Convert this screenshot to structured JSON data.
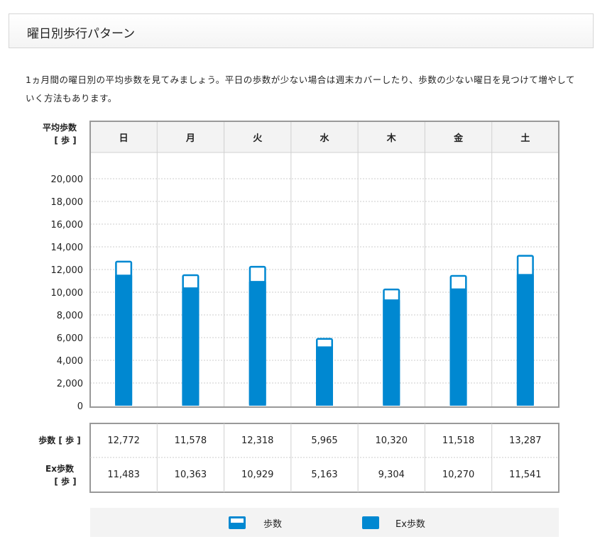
{
  "section": {
    "title": "曜日別歩行パターン"
  },
  "description": "1ヵ月間の曜日別の平均歩数を見てみましょう。平日の歩数が少ない場合は週末カバーしたり、歩数の少ない曜日を見つけて増やしていく方法もあります。",
  "colors": {
    "bar": "#0088d1",
    "frame": "#999999",
    "grid": "#cccccc",
    "header_bg": "#f3f3f3",
    "legend_bg": "#f3f3f3"
  },
  "chart_data": {
    "type": "bar",
    "categories": [
      "日",
      "月",
      "火",
      "水",
      "木",
      "金",
      "土"
    ],
    "series": [
      {
        "name": "歩数",
        "values": [
          12772,
          11578,
          12318,
          5965,
          10320,
          11518,
          13287
        ]
      },
      {
        "name": "Ex歩数",
        "values": [
          11483,
          10363,
          10929,
          5163,
          9304,
          10270,
          11541
        ]
      }
    ],
    "ylabel_line1": "平均歩数",
    "ylabel_line2": "[ 歩 ]",
    "ylim": [
      0,
      20000
    ],
    "yticks": [
      "0",
      "2,000",
      "4,000",
      "6,000",
      "8,000",
      "10,000",
      "12,000",
      "14,000",
      "16,000",
      "18,000",
      "20,000"
    ],
    "grid": true,
    "legend_position": "bottom"
  },
  "table": {
    "rows": [
      {
        "label_line1": "歩数 [ 歩 ]",
        "label_line2": "",
        "cells": [
          "12,772",
          "11,578",
          "12,318",
          "5,965",
          "10,320",
          "11,518",
          "13,287"
        ]
      },
      {
        "label_line1": "Ex歩数",
        "label_line2": "[ 歩 ]",
        "cells": [
          "11,483",
          "10,363",
          "10,929",
          "5,163",
          "9,304",
          "10,270",
          "11,541"
        ]
      }
    ]
  },
  "legend": {
    "items": [
      {
        "label": "歩数",
        "icon": "outlined-bar-icon"
      },
      {
        "label": "Ex歩数",
        "icon": "filled-bar-icon"
      }
    ]
  }
}
